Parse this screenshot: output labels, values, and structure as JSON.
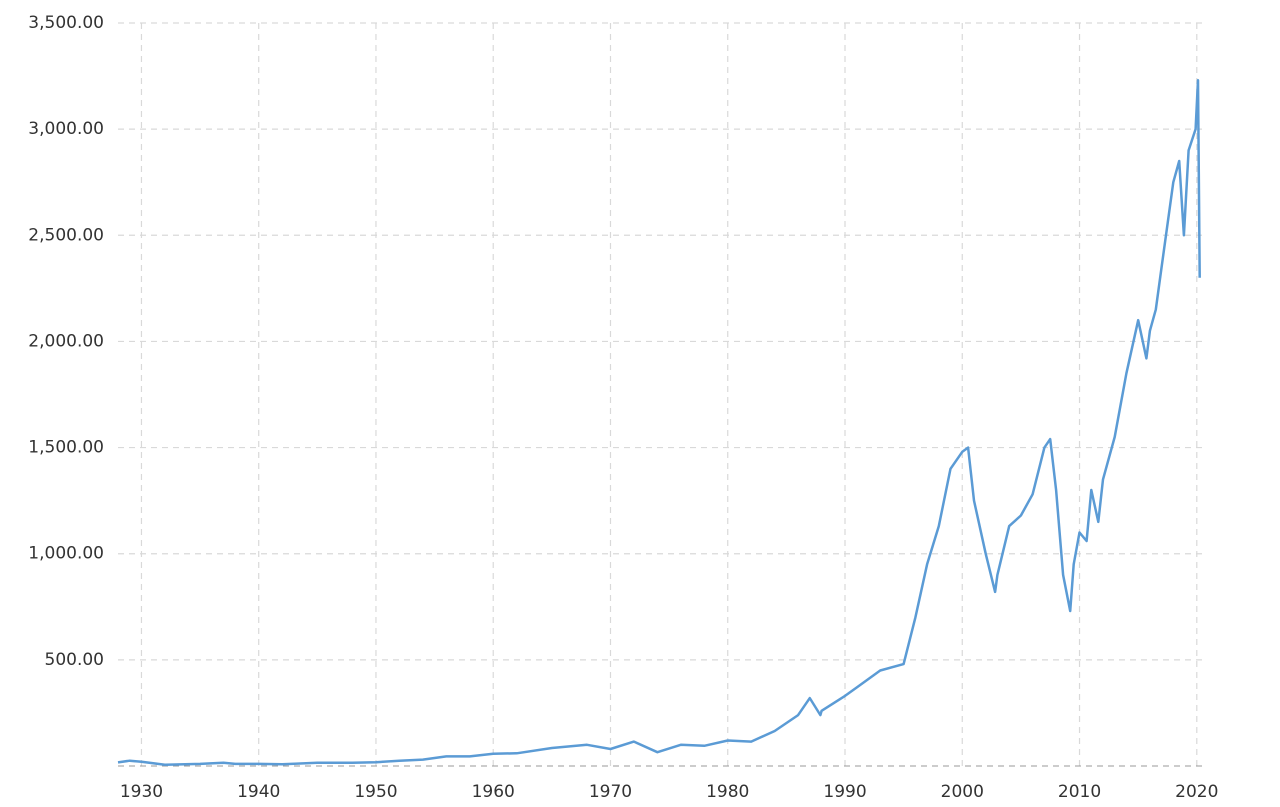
{
  "chart_data": {
    "type": "line",
    "x": [
      1928,
      1929,
      1930,
      1932,
      1935,
      1937,
      1938,
      1940,
      1942,
      1945,
      1948,
      1950,
      1952,
      1954,
      1956,
      1958,
      1960,
      1962,
      1965,
      1968,
      1970,
      1972,
      1974,
      1976,
      1978,
      1980,
      1982,
      1984,
      1986,
      1987,
      1987.9,
      1988,
      1990,
      1991,
      1993,
      1995,
      1996,
      1997,
      1998,
      1999,
      2000,
      2000.5,
      2001,
      2002,
      2002.8,
      2003,
      2004,
      2005,
      2006,
      2007,
      2007.5,
      2008,
      2008.6,
      2009.2,
      2009.5,
      2010,
      2010.6,
      2011,
      2011.6,
      2012,
      2013,
      2014,
      2015,
      2015.7,
      2016,
      2016.5,
      2017,
      2018,
      2018.5,
      2018.9,
      2019.3,
      2019.9,
      2020.1,
      2020.25
    ],
    "series": [
      {
        "color": "#5b9bd5",
        "values": [
          17,
          25,
          20,
          6,
          10,
          15,
          10,
          10,
          8,
          15,
          15,
          18,
          25,
          30,
          45,
          45,
          58,
          60,
          85,
          100,
          80,
          115,
          65,
          100,
          95,
          120,
          115,
          165,
          240,
          320,
          240,
          260,
          330,
          370,
          450,
          480,
          700,
          950,
          1130,
          1400,
          1480,
          1500,
          1250,
          1000,
          820,
          900,
          1130,
          1180,
          1280,
          1500,
          1540,
          1300,
          900,
          730,
          950,
          1100,
          1060,
          1300,
          1150,
          1350,
          1550,
          1850,
          2100,
          1920,
          2050,
          2150,
          2350,
          2750,
          2850,
          2500,
          2900,
          3000,
          3230,
          2300
        ]
      }
    ],
    "xlim": [
      1928,
      2020.7
    ],
    "xticks": [
      1930,
      1940,
      1950,
      1960,
      1970,
      1980,
      1990,
      2000,
      2010,
      2020
    ],
    "ylim": [
      0,
      3500
    ],
    "yticks": [
      {
        "value": 500,
        "label": "500.00"
      },
      {
        "value": 1000,
        "label": "1,000.00"
      },
      {
        "value": 1500,
        "label": "1,500.00"
      },
      {
        "value": 2000,
        "label": "2,000.00"
      },
      {
        "value": 2500,
        "label": "2,500.00"
      },
      {
        "value": 3000,
        "label": "3,000.00"
      },
      {
        "value": 3500,
        "label": "3,500.00"
      }
    ],
    "grid": true
  }
}
